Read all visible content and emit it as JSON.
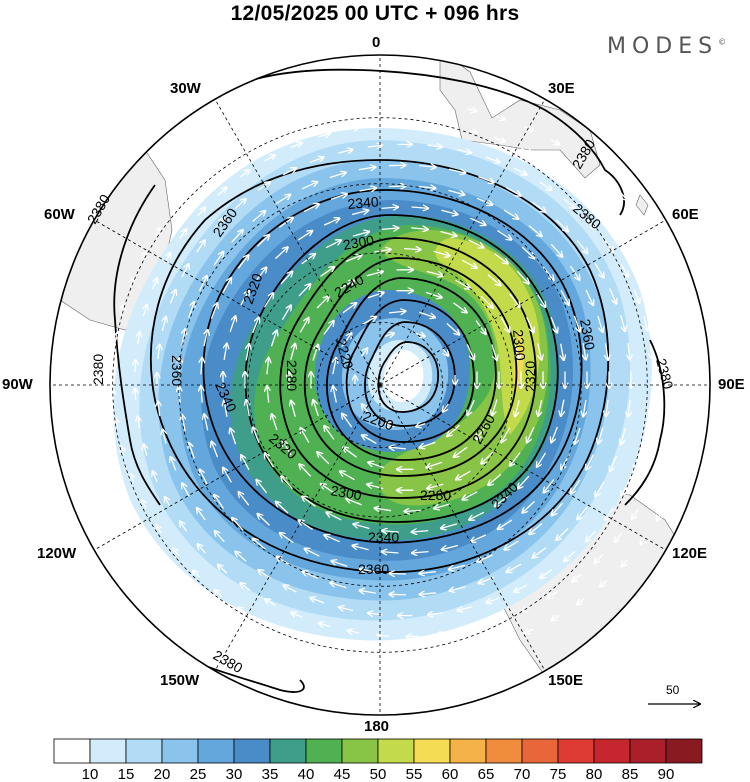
{
  "title": "12/05/2025  00 UTC  + 096 hrs",
  "brand": "MODES",
  "brand_mark": "©",
  "longitude_labels": {
    "lon_0": "0",
    "lon_30e": "30E",
    "lon_60e": "60E",
    "lon_90e": "90E",
    "lon_120e": "120E",
    "lon_150e": "150E",
    "lon_180": "180",
    "lon_150w": "150W",
    "lon_120w": "120W",
    "lon_90w": "90W",
    "lon_60w": "60W",
    "lon_30w": "30W"
  },
  "contour_labels": {
    "c2380_nw": "2380",
    "c2380_ne": "2380",
    "c2380_w": "2380",
    "c2380_e": "2380",
    "c2380_s": "2380",
    "c2360_nw": "2360",
    "c2360_w": "2360",
    "c2360_ne": "2360",
    "c2360_s": "2360",
    "c2340_n": "2340",
    "c2340_w": "2340",
    "c2340_se": "2340",
    "c2340_s": "2340",
    "c2320_nw": "2320",
    "c2320_e": "2320",
    "c2320_sw": "2320",
    "c2300_n": "2300",
    "c2300_e": "2300",
    "c2300_s": "2300",
    "c2280_w": "2280",
    "c2280_s": "2280",
    "c2260_e": "2260",
    "c2240_n": "2240",
    "c2220_c": "2220",
    "c2200_c": "2200"
  },
  "reference_vector_label": "50",
  "colorbar": {
    "labels": [
      "10",
      "15",
      "20",
      "25",
      "30",
      "35",
      "40",
      "45",
      "50",
      "55",
      "60",
      "65",
      "70",
      "75",
      "80",
      "85",
      "90"
    ],
    "colors": [
      "#ffffff",
      "#d2ecfb",
      "#b2dcf5",
      "#8ac4ec",
      "#64a7dc",
      "#4a8cc8",
      "#3e9e8a",
      "#4fb152",
      "#88c446",
      "#c3da4a",
      "#f4dd54",
      "#f4b249",
      "#f08d3c",
      "#e8663a",
      "#dd3b34",
      "#c6262d",
      "#aa1f2a",
      "#8a1a22"
    ]
  },
  "colors": {
    "land": "#f0f0f0",
    "contour": "#000000",
    "vector": "#ffffff"
  }
}
